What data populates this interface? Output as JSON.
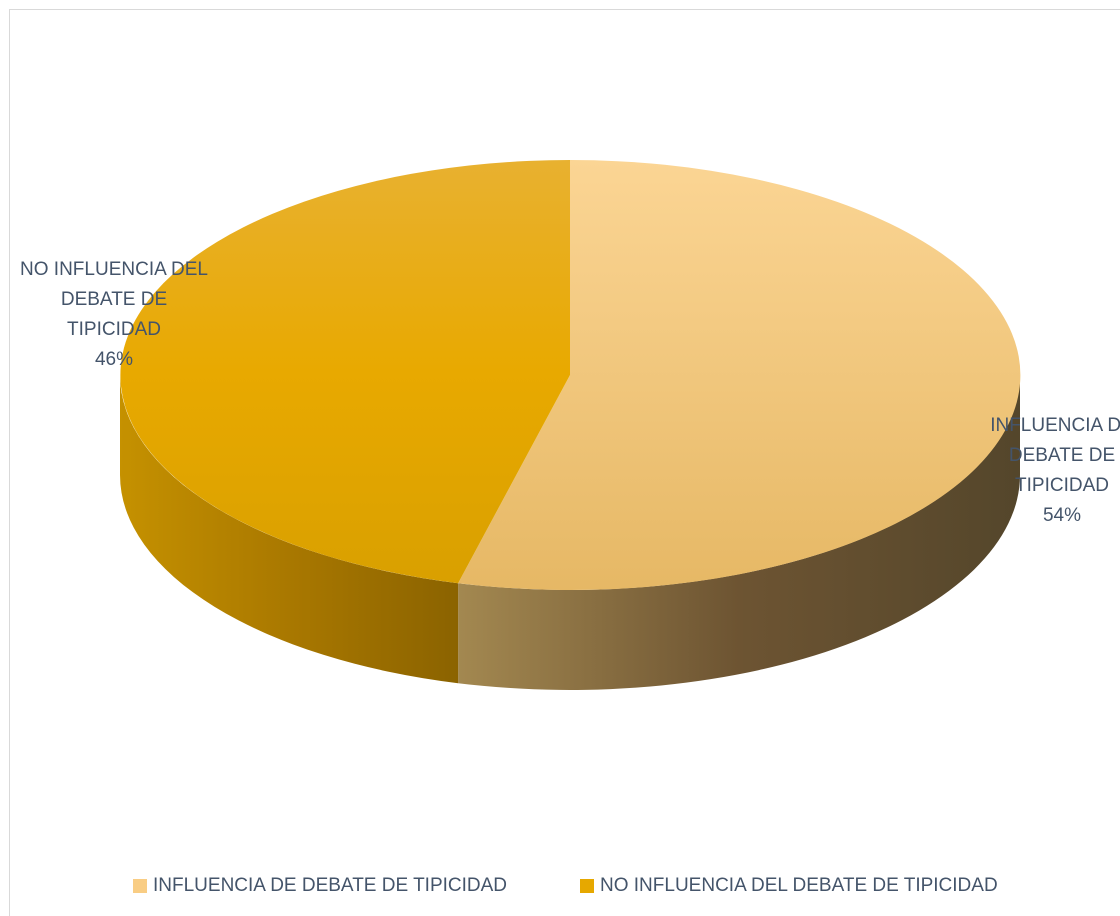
{
  "chart_data": {
    "type": "pie",
    "title": "",
    "slices": [
      {
        "label": "INFLUENCIA DE DEBATE DE TIPICIDAD",
        "value": 54,
        "percent_label": "54%",
        "color": "#f9cd84"
      },
      {
        "label": "NO INFLUENCIA DEL DEBATE DE TIPICIDAD",
        "value": 46,
        "percent_label": "46%",
        "color": "#e6a800"
      }
    ],
    "data_labels": {
      "yes": {
        "lines": [
          "INFLUENCIA DE",
          "DEBATE DE",
          "TIPICIDAD"
        ],
        "percent": "54%"
      },
      "no": {
        "lines": [
          "NO INFLUENCIA DEL",
          "DEBATE DE",
          "TIPICIDAD"
        ],
        "percent": "46%"
      }
    },
    "legend": {
      "position": "bottom",
      "items": [
        {
          "label": "INFLUENCIA DE DEBATE DE TIPICIDAD",
          "color": "#f9cd84"
        },
        {
          "label": "NO INFLUENCIA DEL DEBATE DE TIPICIDAD",
          "color": "#e6a800"
        }
      ]
    },
    "style": "3d-pie",
    "label_color": "#44546a"
  }
}
